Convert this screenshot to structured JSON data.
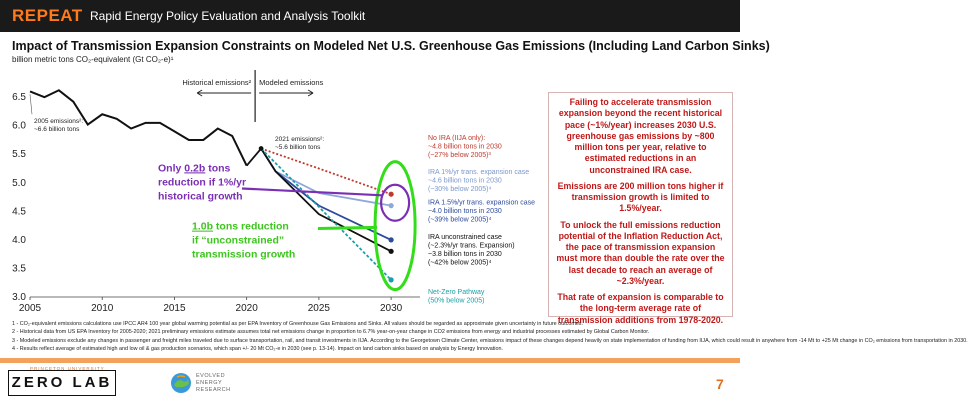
{
  "header": {
    "brand": "REPEAT",
    "tool": "Rapid Energy Policy Evaluation and Analysis Toolkit"
  },
  "title": "Impact of Transmission Expansion Constraints on Modeled Net U.S. Greenhouse Gas Emissions (Including Land Carbon Sinks)",
  "subtitle": "billion metric tons CO₂-equivalent (Gt CO₂-e)¹",
  "chart_data": {
    "type": "line",
    "title": "Impact of Transmission Expansion Constraints on Modeled Net U.S. Greenhouse Gas Emissions (Including Land Carbon Sinks)",
    "ylabel": "billion metric tons CO₂-equivalent (Gt CO₂-e)¹",
    "xlim": [
      2005,
      2032
    ],
    "ylim": [
      3.0,
      6.8
    ],
    "x_ticks": [
      "2005",
      "2010",
      "2015",
      "2020",
      "2025",
      "2030"
    ],
    "x_tick_values": [
      2005,
      2010,
      2015,
      2020,
      2025,
      2030
    ],
    "y_ticks": [
      "3.0",
      "3.5",
      "4.0",
      "4.5",
      "5.0",
      "5.5",
      "6.0",
      "6.5"
    ],
    "y_tick_values": [
      3.0,
      3.5,
      4.0,
      4.5,
      5.0,
      5.5,
      6.0,
      6.5
    ],
    "projection_start": 2021,
    "section_labels": {
      "historical": "Historical emissions²",
      "modeled": "Modeled emissions"
    },
    "historical": {
      "name": "Historical emissions",
      "color": "#111111",
      "x": [
        2005,
        2006,
        2007,
        2008,
        2009,
        2010,
        2011,
        2012,
        2013,
        2014,
        2015,
        2016,
        2017,
        2018,
        2019,
        2020
      ],
      "y": [
        6.6,
        6.5,
        6.62,
        6.42,
        6.02,
        6.2,
        6.12,
        5.95,
        6.05,
        6.05,
        5.9,
        5.75,
        5.75,
        5.95,
        5.82,
        5.3
      ]
    },
    "series": [
      {
        "name": "No IRA (IIJA only)",
        "color": "#c0392b",
        "dash": "2,2",
        "x": [
          2021,
          2025,
          2030
        ],
        "y": [
          5.6,
          5.25,
          4.8
        ]
      },
      {
        "name": "IRA 1%/yr trans. expansion case",
        "color": "#8fa8d8",
        "dash": "",
        "x": [
          2021,
          2022,
          2025,
          2030
        ],
        "y": [
          5.6,
          5.2,
          4.82,
          4.6
        ]
      },
      {
        "name": "IRA 1.5%/yr trans. expansion case",
        "color": "#2c4b9a",
        "dash": "",
        "x": [
          2021,
          2022,
          2025,
          2030
        ],
        "y": [
          5.6,
          5.2,
          4.6,
          4.0
        ]
      },
      {
        "name": "IRA unconstrained case",
        "color": "#111111",
        "dash": "",
        "x": [
          2021,
          2022,
          2025,
          2030
        ],
        "y": [
          5.6,
          5.2,
          4.45,
          3.8
        ]
      },
      {
        "name": "Net-Zero Pathway",
        "color": "#1a9fa8",
        "dash": "3,2",
        "x": [
          2021,
          2030
        ],
        "y": [
          5.6,
          3.3
        ]
      }
    ],
    "end_markers": [
      {
        "x": 2030,
        "y": 4.8,
        "color": "#c0392b"
      },
      {
        "x": 2030,
        "y": 4.6,
        "color": "#8fa8d8"
      },
      {
        "x": 2030,
        "y": 4.0,
        "color": "#2c4b9a"
      },
      {
        "x": 2030,
        "y": 3.8,
        "color": "#111111"
      },
      {
        "x": 2030,
        "y": 3.3,
        "color": "#1a9fa8"
      }
    ],
    "annotations": {
      "emissions_2005": [
        "2005 emissions²:",
        "~6.6 billion tons"
      ],
      "emissions_2021": [
        "2021 emissions²:",
        "~5.6 billion tons"
      ],
      "no_ira": [
        "No IRA (IIJA only):",
        "~4.8 billion tons in 2030",
        "(~27% below 2005)³"
      ],
      "ira_1pct": [
        "IRA 1%/yr trans. expansion case",
        "~4.6 billion tons in 2030",
        "(~30% below 2005)⁴"
      ],
      "ira_15pct": [
        "IRA 1.5%/yr trans. expansion case",
        "~4.0 billion tons in 2030",
        "(~39% below 2005)⁴"
      ],
      "ira_unconstrained": [
        "IRA unconstrained case",
        "(~2.3%/yr trans. Expansion)",
        "~3.8 billion tons in 2030",
        "(~42% below 2005)⁴"
      ],
      "net_zero": [
        "Net-Zero Pathway",
        "(50% below 2005)"
      ]
    },
    "callouts": {
      "purple": {
        "prefix": "Only ",
        "value": "0.2b",
        "lines": [
          "tons",
          "reduction if 1%/yr",
          "historical growth"
        ]
      },
      "green": {
        "value": "1.0b",
        "lines": [
          "tons reduction",
          "if “unconstrained”",
          "transmission growth"
        ]
      }
    }
  },
  "info_box": {
    "paragraphs": [
      "Failing to accelerate transmission expansion beyond the recent historical pace (~1%/year) increases 2030 U.S. greenhouse gas emissions by ~800 million tons per year, relative to estimated reductions in an unconstrained IRA case.",
      "Emissions are 200 million tons higher if transmission growth is limited to 1.5%/year.",
      "To unlock the full emissions reduction potential of the Inflation Reduction Act, the pace of transmission expansion must more than double the rate over the last decade to reach an average of ~2.3%/year.",
      "That rate of expansion is comparable to the long-term average rate of transmission additions from 1978-2020."
    ]
  },
  "footnotes": [
    "1 - CO₂-equivalent emissions calculations use IPCC AR4 100 year global warming potential as per EPA Inventory of Greenhouse Gas Emissions and Sinks. All values should be regarded as approximate given uncertainty in future outcomes.",
    "2 - Historical data from US EPA Inventory for 2005-2020; 2021 preliminary emissions estimate assumes total net emissions change in proportion to 6.7% year-on-year change in CO2 emissions from energy and industrial processes estimated by Global Carbon Monitor.",
    "3 - Modeled emissions exclude any changes in passenger and freight miles traveled due to surface transportation, rail, and transit investments in IIJA. According to the Georgetown Climate Center, emissions impact of these changes depend heavily on state implementation of funding from IIJA, which could result in anywhere from -14 Mt to +25 Mt change in CO₂ emissions from transportation in 2030.",
    "4 - Results reflect average of estimated high and low oil & gas production scenarios, which span +/- 20 Mt CO₂-e in 2030 (see p. 13-14). Impact on land carbon sinks based on analysis by Energy Innovation."
  ],
  "footer": {
    "princeton": "PRINCETON UNIVERSITY",
    "zerolab": "ZERO LAB",
    "eer_lines": [
      "EVOLVED",
      "ENERGY",
      "RESEARCH"
    ],
    "page_number": "7"
  }
}
